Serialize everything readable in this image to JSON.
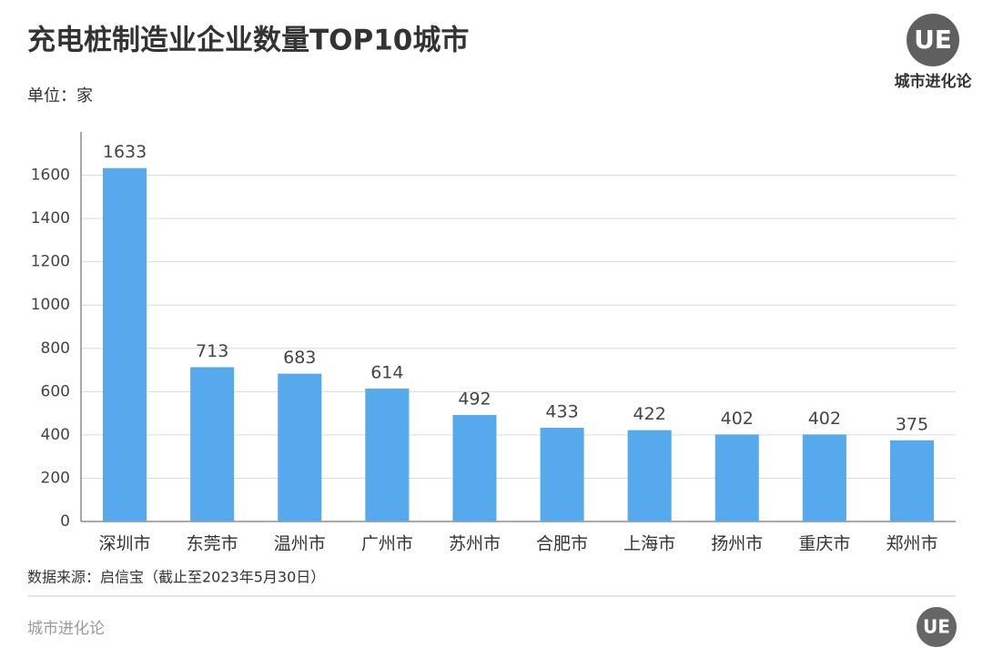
{
  "chart_data": {
    "type": "bar",
    "title": "充电桩制造业企业数量TOP10城市",
    "unit_label": "单位：家",
    "categories": [
      "深圳市",
      "东莞市",
      "温州市",
      "广州市",
      "苏州市",
      "合肥市",
      "上海市",
      "扬州市",
      "重庆市",
      "郑州市"
    ],
    "values": [
      1633,
      713,
      683,
      614,
      492,
      433,
      422,
      402,
      402,
      375
    ],
    "color": "#56a9ec",
    "ylim": [
      0,
      1800
    ],
    "yticks": [
      0,
      200,
      400,
      600,
      800,
      1000,
      1200,
      1400,
      1600
    ],
    "grid": true,
    "source": "数据来源：启信宝（截止至2023年5月30日）",
    "brand": "城市进化论",
    "logo": "UE"
  }
}
